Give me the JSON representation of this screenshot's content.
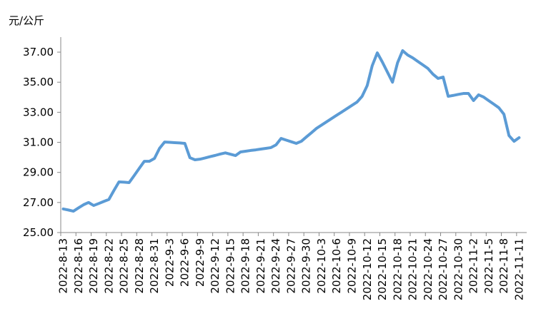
{
  "chart_data": {
    "type": "line",
    "y_label": "元/公斤",
    "categories": [
      "2022-8-13",
      null,
      null,
      "2022-8-16",
      null,
      null,
      "2022-8-19",
      null,
      null,
      "2022-8-22",
      null,
      null,
      "2022-8-25",
      null,
      null,
      "2022-8-28",
      null,
      null,
      "2022-8-31",
      null,
      null,
      "2022-9-3",
      null,
      null,
      "2022-9-6",
      null,
      null,
      "2022-9-9",
      null,
      null,
      "2022-9-12",
      null,
      null,
      "2022-9-15",
      null,
      null,
      "2022-9-18",
      null,
      null,
      "2022-9-21",
      null,
      null,
      "2022-9-24",
      null,
      null,
      "2022-9-27",
      null,
      null,
      "2022-9-30",
      null,
      null,
      "2022-10-3",
      null,
      null,
      "2022-10-6",
      null,
      null,
      "2022-10-9",
      null,
      null,
      "2022-10-12",
      null,
      null,
      "2022-10-15",
      null,
      null,
      "2022-10-18",
      null,
      null,
      "2022-10-21",
      null,
      null,
      "2022-10-24",
      null,
      null,
      "2022-10-27",
      null,
      null,
      "2022-10-30",
      null,
      null,
      "2022-11-2",
      null,
      null,
      "2022-11-5",
      null,
      null,
      "2022-11-8",
      null,
      null,
      "2022-11-11",
      null
    ],
    "series": [
      {
        "color": "#5b9bd5",
        "values": [
          26.57,
          26.5,
          26.42,
          26.64,
          26.85,
          27.0,
          26.8,
          26.93,
          27.07,
          27.2,
          27.8,
          28.37,
          28.35,
          28.32,
          28.79,
          29.27,
          29.74,
          29.74,
          29.93,
          30.6,
          31.02,
          31.0,
          30.98,
          30.96,
          30.93,
          29.98,
          29.84,
          29.88,
          29.96,
          30.05,
          30.13,
          30.22,
          30.3,
          30.21,
          30.12,
          30.36,
          30.41,
          30.46,
          30.5,
          30.55,
          30.6,
          30.65,
          30.83,
          31.26,
          31.15,
          31.04,
          30.93,
          31.07,
          31.36,
          31.64,
          31.93,
          32.15,
          32.37,
          32.59,
          32.81,
          33.02,
          33.24,
          33.46,
          33.68,
          34.06,
          34.77,
          36.1,
          36.95,
          36.34,
          35.67,
          35.0,
          36.29,
          37.1,
          36.81,
          36.62,
          36.38,
          36.15,
          35.91,
          35.53,
          35.25,
          35.34,
          34.06,
          34.12,
          34.19,
          34.25,
          34.25,
          33.78,
          34.16,
          34.01,
          33.77,
          33.54,
          33.3,
          32.87,
          31.45,
          31.07,
          31.31,
          null
        ]
      }
    ],
    "ylim": [
      25,
      38
    ],
    "yticks": [
      {
        "value": 25,
        "label": "25.00"
      },
      {
        "value": 27,
        "label": "27.00"
      },
      {
        "value": 29,
        "label": "29.00"
      },
      {
        "value": 31,
        "label": "31.00"
      },
      {
        "value": 33,
        "label": "33.00"
      },
      {
        "value": 35,
        "label": "35.00"
      },
      {
        "value": 37,
        "label": "37.00"
      }
    ],
    "grid": false
  }
}
